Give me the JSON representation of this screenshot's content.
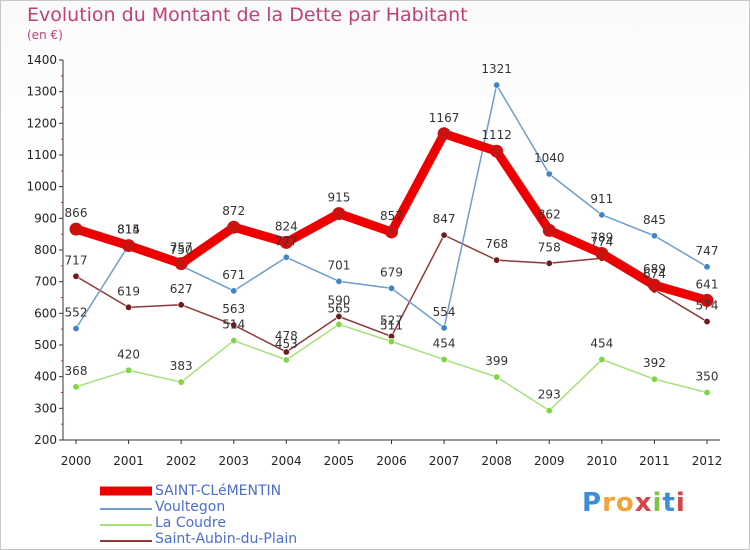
{
  "title": "Evolution du Montant de la Dette par Habitant",
  "subtitle": "(en €)",
  "logo_text": "Proxiti",
  "chart_data": {
    "type": "line",
    "x": [
      "2000",
      "2001",
      "2002",
      "2003",
      "2004",
      "2005",
      "2006",
      "2007",
      "2008",
      "2009",
      "2010",
      "2011",
      "2012"
    ],
    "ylim": [
      200,
      1400
    ],
    "yticks": [
      200,
      300,
      400,
      500,
      600,
      700,
      800,
      900,
      1000,
      1100,
      1200,
      1300,
      1400
    ],
    "grid": false,
    "legend_position": "bottom-left",
    "series": [
      {
        "name": "SAINT-CLéMENTIN",
        "color": "#ee0000",
        "marker_color": "#cc1111",
        "width": 9,
        "values": [
          866,
          814,
          757,
          872,
          824,
          915,
          857,
          1167,
          1112,
          862,
          789,
          689,
          641
        ],
        "labels": [
          "866",
          "814",
          "757",
          "872",
          "824",
          "915",
          "857",
          "1167",
          "1112",
          "862",
          "789",
          "689",
          "641"
        ]
      },
      {
        "name": "Voultegon",
        "color": "#6f9ecb",
        "marker_color": "#3f86c8",
        "width": 1.5,
        "values": [
          552,
          815,
          750,
          671,
          777,
          701,
          679,
          554,
          1321,
          1040,
          911,
          845,
          747
        ],
        "labels": [
          "552",
          "815",
          "750",
          "671",
          "777",
          "701",
          "679",
          "554",
          "1321",
          "1040",
          "911",
          "845",
          "747"
        ]
      },
      {
        "name": "La Coudre",
        "color": "#a7e07a",
        "marker_color": "#7fd640",
        "width": 1.5,
        "values": [
          368,
          420,
          383,
          514,
          453,
          565,
          511,
          454,
          399,
          293,
          454,
          392,
          350
        ],
        "labels": [
          "368",
          "420",
          "383",
          "514",
          "453",
          "565",
          "511",
          "454",
          "399",
          "293",
          "454",
          "392",
          "350"
        ]
      },
      {
        "name": "Saint-Aubin-du-Plain",
        "color": "#8b3a3a",
        "marker_color": "#6e1c1c",
        "width": 1.5,
        "values": [
          717,
          619,
          627,
          563,
          478,
          590,
          527,
          847,
          768,
          758,
          774,
          674,
          574
        ],
        "labels": [
          "717",
          "619",
          "627",
          "563",
          "478",
          "590",
          "527",
          "847",
          "768",
          "758",
          "774",
          "674",
          "574"
        ]
      }
    ]
  }
}
